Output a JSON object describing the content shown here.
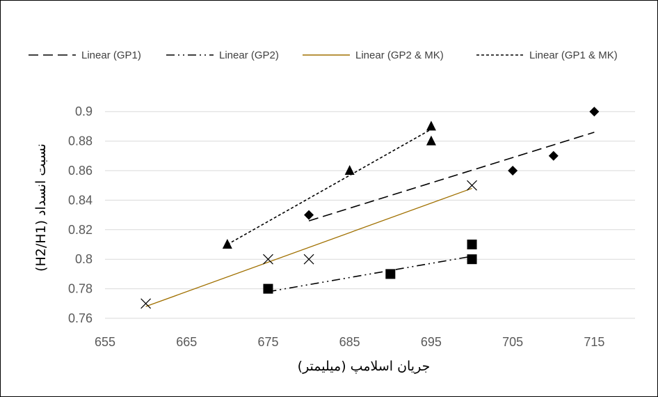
{
  "chart_data": {
    "type": "scatter",
    "xlabel": "جریان اسلامپ (میلیمتر)",
    "ylabel": "نسبت انسداد (H2/H1)",
    "xlim": [
      655,
      720
    ],
    "ylim": [
      0.76,
      0.91
    ],
    "x_ticks": [
      655,
      665,
      675,
      685,
      695,
      705,
      715
    ],
    "y_ticks": [
      0.76,
      0.78,
      0.8,
      0.82,
      0.84,
      0.86,
      0.88,
      0.9
    ],
    "x_tick_labels": [
      "655",
      "665",
      "675",
      "685",
      "695",
      "705",
      "715"
    ],
    "y_tick_labels": [
      "0.76",
      "0.78",
      "0.8",
      "0.82",
      "0.84",
      "0.86",
      "0.88",
      "0.9"
    ],
    "grid": true,
    "legend_position": "top",
    "series": [
      {
        "marker": "diamond",
        "points": [
          [
            680,
            0.83
          ],
          [
            705,
            0.86
          ],
          [
            710,
            0.87
          ],
          [
            715,
            0.9
          ]
        ]
      },
      {
        "marker": "square",
        "points": [
          [
            675,
            0.78
          ],
          [
            690,
            0.79
          ],
          [
            700,
            0.8
          ],
          [
            700,
            0.81
          ]
        ]
      },
      {
        "marker": "x",
        "points": [
          [
            660,
            0.77
          ],
          [
            675,
            0.8
          ],
          [
            680,
            0.8
          ],
          [
            700,
            0.85
          ]
        ]
      },
      {
        "marker": "triangle",
        "points": [
          [
            670,
            0.81
          ],
          [
            685,
            0.86
          ],
          [
            695,
            0.88
          ],
          [
            695,
            0.89
          ]
        ]
      }
    ],
    "trendlines": [
      {
        "name": "Linear (GP1)",
        "style": "dashed",
        "color": "#000000",
        "x": [
          680,
          715
        ],
        "y": [
          0.826,
          0.886
        ]
      },
      {
        "name": "Linear (GP2)",
        "style": "dash-dot-dot",
        "color": "#000000",
        "x": [
          675,
          700
        ],
        "y": [
          0.778,
          0.802
        ]
      },
      {
        "name": "Linear (GP2 & MK)",
        "style": "solid",
        "color": "#A07000",
        "x": [
          660,
          700
        ],
        "y": [
          0.768,
          0.848
        ]
      },
      {
        "name": "Linear (GP1 & MK)",
        "style": "dotted",
        "color": "#000000",
        "x": [
          670,
          695
        ],
        "y": [
          0.81,
          0.888
        ]
      }
    ]
  }
}
